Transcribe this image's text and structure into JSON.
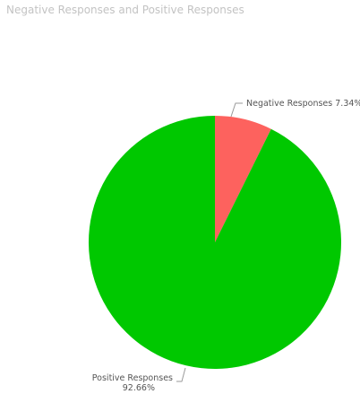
{
  "chart_data": {
    "type": "pie",
    "title": "Negative Responses and Positive Responses",
    "slices": [
      {
        "name": "Negative Responses",
        "value": 7.34,
        "label": "Negative Responses 7.34%",
        "color": "#fd625e"
      },
      {
        "name": "Positive Responses",
        "value": 92.66,
        "label_name": "Positive Responses",
        "label_pct": "92.66%",
        "color": "#00c800"
      }
    ]
  }
}
